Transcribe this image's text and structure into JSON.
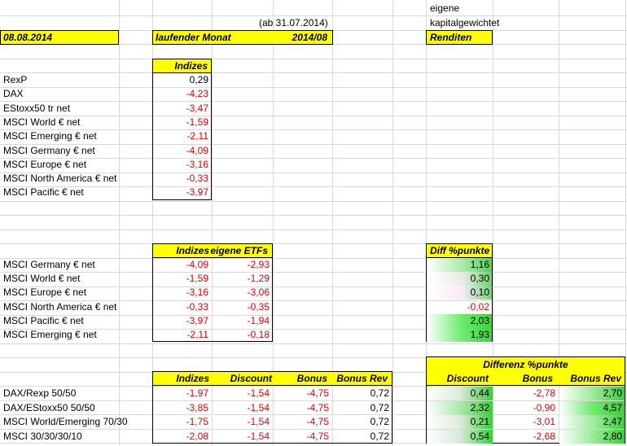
{
  "header": {
    "date": "08.08.2014",
    "as_of": "(ab 31.07.2014)",
    "period_label": "laufender Monat",
    "period": "2014/08",
    "weighting_line1": "eigene",
    "weighting_line2": "kapitalgewichtet",
    "returns_label": "Renditen"
  },
  "indices_table": {
    "header": "Indizes",
    "rows": [
      {
        "name": "RexP",
        "value": "0,29"
      },
      {
        "name": "DAX",
        "value": "-4,23"
      },
      {
        "name": "EStoxx50 tr net",
        "value": "-3,47"
      },
      {
        "name": "MSCI World € net",
        "value": "-1,59"
      },
      {
        "name": "MSCI Emerging € net",
        "value": "-2,11"
      },
      {
        "name": "MSCI Germany € net",
        "value": "-4,09"
      },
      {
        "name": "MSCI Europe € net",
        "value": "-3,16"
      },
      {
        "name": "MSCI North America € net",
        "value": "-0,33"
      },
      {
        "name": "MSCI Pacific € net",
        "value": "-3,97"
      }
    ]
  },
  "etf_table": {
    "col_indizes": "Indizes",
    "col_etfs": "eigene ETFs",
    "col_diff": "Diff %punkte",
    "rows": [
      {
        "name": "MSCI Germany € net",
        "index": "-4,09",
        "etf": "-2,93",
        "diff": "1,16",
        "diff_value": 1.16
      },
      {
        "name": "MSCI World € net",
        "index": "-1,59",
        "etf": "-1,29",
        "diff": "0,30",
        "diff_value": 0.3
      },
      {
        "name": "MSCI Europe € net",
        "index": "-3,16",
        "etf": "-3,06",
        "diff": "0,10",
        "diff_value": 0.1
      },
      {
        "name": "MSCI North America € net",
        "index": "-0,33",
        "etf": "-0,35",
        "diff": "-0,02",
        "diff_value": -0.02
      },
      {
        "name": "MSCI Pacific € net",
        "index": "-3,97",
        "etf": "-1,94",
        "diff": "2,03",
        "diff_value": 2.03
      },
      {
        "name": "MSCI Emerging € net",
        "index": "-2,11",
        "etf": "-0,18",
        "diff": "1,93",
        "diff_value": 1.93
      }
    ]
  },
  "portfolio_table": {
    "col_indizes": "Indizes",
    "col_discount": "Discount",
    "col_bonus": "Bonus",
    "col_bonus_rev": "Bonus Rev",
    "diff_header": "Differenz %punkte",
    "diff_col_discount": "Discount",
    "diff_col_bonus": "Bonus",
    "diff_col_bonus_rev": "Bonus Rev",
    "rows": [
      {
        "name": "DAX/Rexp 50/50",
        "index": "-1,97",
        "discount": "-1,54",
        "bonus": "-4,75",
        "bonus_rev": "0,72",
        "d_discount": "0,44",
        "d_bonus": "-2,78",
        "d_bonus_rev": "2,70",
        "d_discount_value": 0.44,
        "d_bonus_value": -2.78,
        "d_bonus_rev_value": 2.7
      },
      {
        "name": "DAX/EStoxx50 50/50",
        "index": "-3,85",
        "discount": "-1,54",
        "bonus": "-4,75",
        "bonus_rev": "0,72",
        "d_discount": "2,32",
        "d_bonus": "-0,90",
        "d_bonus_rev": "4,57",
        "d_discount_value": 2.32,
        "d_bonus_value": -0.9,
        "d_bonus_rev_value": 4.57
      },
      {
        "name": "MSCI World/Emerging 70/30",
        "index": "-1,75",
        "discount": "-1,54",
        "bonus": "-4,75",
        "bonus_rev": "0,72",
        "d_discount": "0,21",
        "d_bonus": "-3,01",
        "d_bonus_rev": "2,47",
        "d_discount_value": 0.21,
        "d_bonus_value": -3.01,
        "d_bonus_rev_value": 2.47
      },
      {
        "name": "MSCI 30/30/30/10",
        "index": "-2,08",
        "discount": "-1,54",
        "bonus": "-4,75",
        "bonus_rev": "0,72",
        "d_discount": "0,54",
        "d_bonus": "-2,68",
        "d_bonus_rev": "2,80",
        "d_discount_value": 0.54,
        "d_bonus_value": -2.68,
        "d_bonus_rev_value": 2.8
      }
    ]
  },
  "colors": {
    "highlight": "#ffff00",
    "negative": "#e00000",
    "positive_bar": "#33cc33",
    "gridline": "#d9d9d9"
  }
}
